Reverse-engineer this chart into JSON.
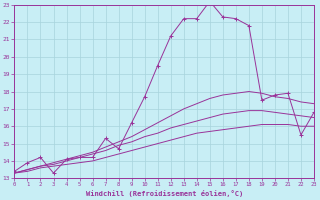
{
  "xlabel": "Windchill (Refroidissement éolien,°C)",
  "bg_color": "#c8eef5",
  "grid_color": "#a8d4dc",
  "line_color": "#993399",
  "xmin": 0,
  "xmax": 23,
  "ymin": 13,
  "ymax": 23,
  "main_x": [
    0,
    1,
    2,
    3,
    4,
    5,
    6,
    7,
    8,
    9,
    10,
    11,
    12,
    13,
    14,
    15,
    16,
    17,
    18,
    19,
    20,
    21,
    22,
    23
  ],
  "main_y": [
    13.4,
    13.9,
    14.2,
    13.3,
    14.1,
    14.2,
    14.2,
    15.3,
    14.7,
    16.2,
    17.7,
    19.5,
    21.2,
    22.2,
    22.2,
    23.2,
    22.3,
    22.2,
    21.8,
    17.5,
    17.8,
    17.9,
    15.5,
    16.8
  ],
  "curve2_x": [
    0,
    1,
    2,
    3,
    4,
    5,
    6,
    7,
    8,
    9,
    10,
    11,
    12,
    13,
    14,
    15,
    16,
    17,
    18,
    19,
    20,
    21,
    22,
    23
  ],
  "curve2_y": [
    13.3,
    13.5,
    13.7,
    13.9,
    14.1,
    14.3,
    14.5,
    14.8,
    15.1,
    15.4,
    15.8,
    16.2,
    16.6,
    17.0,
    17.3,
    17.6,
    17.8,
    17.9,
    18.0,
    17.9,
    17.7,
    17.6,
    17.4,
    17.3
  ],
  "curve3_x": [
    0,
    1,
    2,
    3,
    4,
    5,
    6,
    7,
    8,
    9,
    10,
    11,
    12,
    13,
    14,
    15,
    16,
    17,
    18,
    19,
    20,
    21,
    22,
    23
  ],
  "curve3_y": [
    13.3,
    13.5,
    13.7,
    13.8,
    14.0,
    14.2,
    14.4,
    14.6,
    14.9,
    15.1,
    15.4,
    15.6,
    15.9,
    16.1,
    16.3,
    16.5,
    16.7,
    16.8,
    16.9,
    16.9,
    16.8,
    16.7,
    16.6,
    16.5
  ],
  "curve4_x": [
    0,
    1,
    2,
    3,
    4,
    5,
    6,
    7,
    8,
    9,
    10,
    11,
    12,
    13,
    14,
    15,
    16,
    17,
    18,
    19,
    20,
    21,
    22,
    23
  ],
  "curve4_y": [
    13.3,
    13.4,
    13.6,
    13.7,
    13.8,
    13.9,
    14.0,
    14.2,
    14.4,
    14.6,
    14.8,
    15.0,
    15.2,
    15.4,
    15.6,
    15.7,
    15.8,
    15.9,
    16.0,
    16.1,
    16.1,
    16.1,
    16.0,
    16.0
  ]
}
